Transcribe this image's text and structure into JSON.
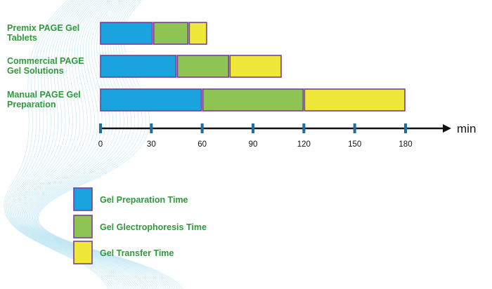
{
  "chart_data": {
    "type": "bar",
    "orientation": "horizontal",
    "stacked": true,
    "categories": [
      "Premix PAGE Gel Tablets",
      "Commercial PAGE Gel Solutions",
      "Manual PAGE Gel Preparation"
    ],
    "category_lines": [
      [
        "Premix PAGE Gel",
        "Tablets"
      ],
      [
        "Commercial PAGE",
        "Gel Solutions"
      ],
      [
        "Manual PAGE Gel",
        "Preparation"
      ]
    ],
    "series": [
      {
        "name": "Gel Preparation Time",
        "values": [
          31,
          45,
          60
        ],
        "color": "#1ba3e0"
      },
      {
        "name": "Gel Glectrophoresis Time",
        "values": [
          21,
          31,
          60
        ],
        "color": "#8dc453"
      },
      {
        "name": "Gel Transfer Time",
        "values": [
          11,
          31,
          60
        ],
        "color": "#f0e838"
      }
    ],
    "xaxis": {
      "unit": "min",
      "ticks": [
        0,
        30,
        60,
        90,
        120,
        150,
        180
      ],
      "range": [
        0,
        180
      ]
    },
    "legend_position": "bottom-left",
    "grid": false
  },
  "colors": {
    "bar_border": "#7a3e9b",
    "label_green": "#2f9a3b",
    "axis": "#111111",
    "tick_mark": "#1e6f9c",
    "wave_lines": "#a7dcef"
  }
}
